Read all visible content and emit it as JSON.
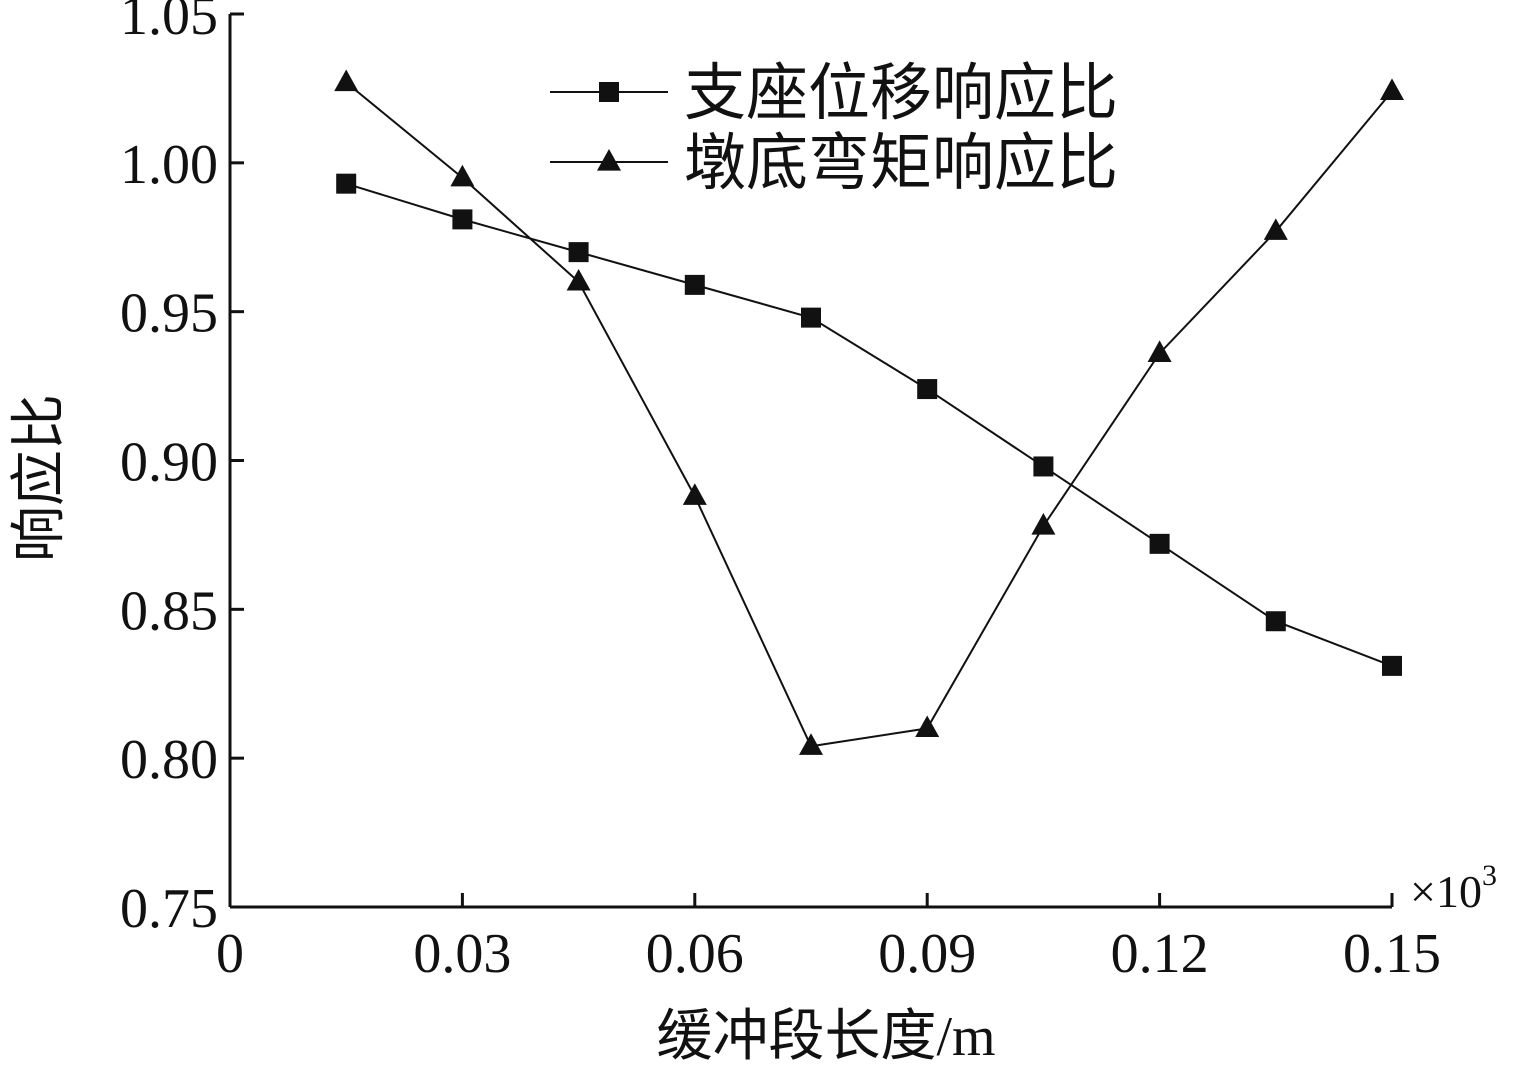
{
  "chart_data": {
    "type": "line",
    "xlabel": "缓冲段长度/m",
    "ylabel": "响应比",
    "x_multiplier_label": "×10",
    "x_multiplier_exp": "3",
    "xlim": [
      0,
      0.15
    ],
    "ylim": [
      0.75,
      1.05
    ],
    "x_ticks": [
      0,
      0.03,
      0.06,
      0.09,
      0.12,
      0.15
    ],
    "x_tick_labels": [
      "0",
      "0.03",
      "0.06",
      "0.09",
      "0.12",
      "0.15"
    ],
    "y_ticks": [
      0.75,
      0.8,
      0.85,
      0.9,
      0.95,
      1.0,
      1.05
    ],
    "y_tick_labels": [
      "0.75",
      "0.80",
      "0.85",
      "0.90",
      "0.95",
      "1.00",
      "1.05"
    ],
    "x": [
      0.015,
      0.03,
      0.045,
      0.06,
      0.075,
      0.09,
      0.105,
      0.12,
      0.135,
      0.15
    ],
    "series": [
      {
        "name": "支座位移响应比",
        "marker": "square",
        "values": [
          0.993,
          0.981,
          0.97,
          0.959,
          0.948,
          0.924,
          0.898,
          0.872,
          0.846,
          0.831
        ]
      },
      {
        "name": "墩底弯矩响应比",
        "marker": "triangle",
        "values": [
          1.027,
          0.995,
          0.96,
          0.888,
          0.804,
          0.81,
          0.878,
          0.936,
          0.977,
          1.024
        ]
      }
    ],
    "legend_position": "top-center",
    "grid": false,
    "line_color": "#111111"
  }
}
